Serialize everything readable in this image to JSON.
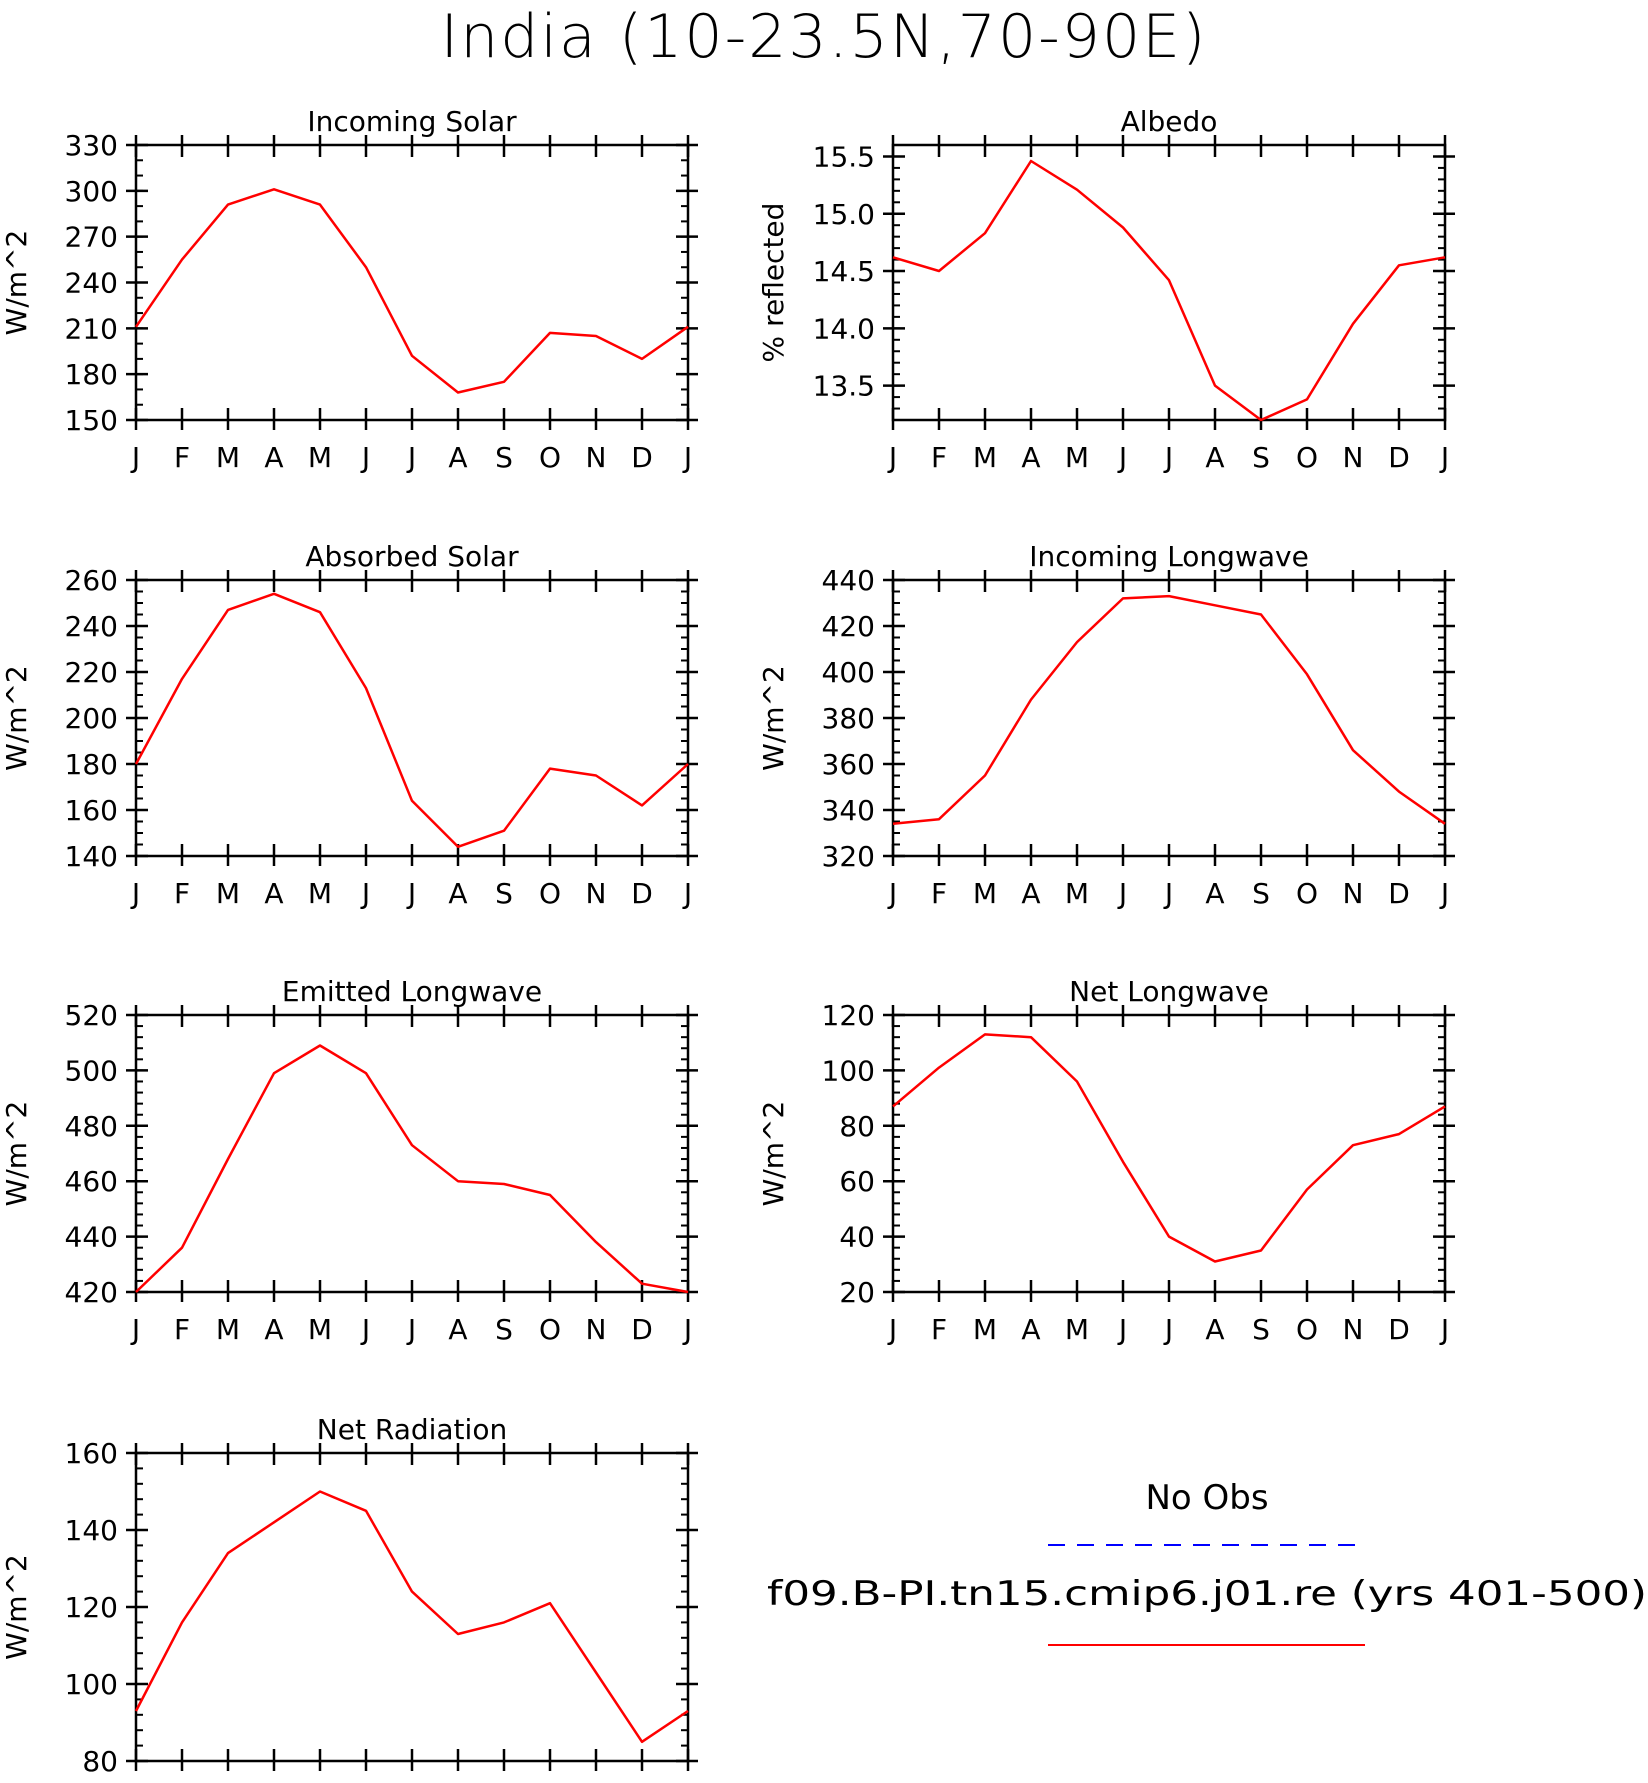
{
  "title": "India (10-23.5N,70-90E)",
  "months": [
    "J",
    "F",
    "M",
    "A",
    "M",
    "J",
    "J",
    "A",
    "S",
    "O",
    "N",
    "D",
    "J"
  ],
  "colors": {
    "model": "#ff0000",
    "obs": "#0000ff",
    "axis": "#000000"
  },
  "chart_data": [
    {
      "type": "line",
      "title": "Incoming Solar",
      "ylabel": "W/m^2",
      "ylim": [
        150,
        330
      ],
      "yticks": [
        150,
        180,
        210,
        240,
        270,
        300,
        330
      ],
      "ydecimals": 0,
      "yminor": 10,
      "categories": [
        "J",
        "F",
        "M",
        "A",
        "M",
        "J",
        "J",
        "A",
        "S",
        "O",
        "N",
        "D",
        "J"
      ],
      "series": [
        {
          "values": [
            211,
            255,
            291,
            301,
            291,
            250,
            192,
            168,
            175,
            207,
            205,
            190,
            211
          ]
        }
      ]
    },
    {
      "type": "line",
      "title": "Albedo",
      "ylabel": "% reflected",
      "ylim": [
        13.2,
        15.6
      ],
      "yticks": [
        13.5,
        14.0,
        14.5,
        15.0,
        15.5
      ],
      "ydecimals": 1,
      "yminor": 0.1,
      "categories": [
        "J",
        "F",
        "M",
        "A",
        "M",
        "J",
        "J",
        "A",
        "S",
        "O",
        "N",
        "D",
        "J"
      ],
      "series": [
        {
          "values": [
            14.62,
            14.5,
            14.83,
            15.46,
            15.21,
            14.88,
            14.42,
            13.5,
            13.2,
            13.38,
            14.04,
            14.55,
            14.62
          ]
        }
      ]
    },
    {
      "type": "line",
      "title": "Absorbed Solar",
      "ylabel": "W/m^2",
      "ylim": [
        140,
        260
      ],
      "yticks": [
        140,
        160,
        180,
        200,
        220,
        240,
        260
      ],
      "ydecimals": 0,
      "yminor": 5,
      "categories": [
        "J",
        "F",
        "M",
        "A",
        "M",
        "J",
        "J",
        "A",
        "S",
        "O",
        "N",
        "D",
        "J"
      ],
      "series": [
        {
          "values": [
            180,
            217,
            247,
            254,
            246,
            213,
            164,
            144,
            151,
            178,
            175,
            162,
            180
          ]
        }
      ]
    },
    {
      "type": "line",
      "title": "Incoming Longwave",
      "ylabel": "W/m^2",
      "ylim": [
        320,
        440
      ],
      "yticks": [
        320,
        340,
        360,
        380,
        400,
        420,
        440
      ],
      "ydecimals": 0,
      "yminor": 5,
      "categories": [
        "J",
        "F",
        "M",
        "A",
        "M",
        "J",
        "J",
        "A",
        "S",
        "O",
        "N",
        "D",
        "J"
      ],
      "series": [
        {
          "values": [
            334,
            336,
            355,
            388,
            413,
            432,
            433,
            429,
            425,
            399,
            366,
            348,
            334
          ]
        }
      ]
    },
    {
      "type": "line",
      "title": "Emitted Longwave",
      "ylabel": "W/m^2",
      "ylim": [
        420,
        520
      ],
      "yticks": [
        420,
        440,
        460,
        480,
        500,
        520
      ],
      "ydecimals": 0,
      "yminor": 4,
      "categories": [
        "J",
        "F",
        "M",
        "A",
        "M",
        "J",
        "J",
        "A",
        "S",
        "O",
        "N",
        "D",
        "J"
      ],
      "series": [
        {
          "values": [
            420,
            436,
            468,
            499,
            509,
            499,
            473,
            460,
            459,
            455,
            438,
            423,
            420
          ]
        }
      ]
    },
    {
      "type": "line",
      "title": "Net Longwave",
      "ylabel": "W/m^2",
      "ylim": [
        20,
        120
      ],
      "yticks": [
        20,
        40,
        60,
        80,
        100,
        120
      ],
      "ydecimals": 0,
      "yminor": 4,
      "categories": [
        "J",
        "F",
        "M",
        "A",
        "M",
        "J",
        "J",
        "A",
        "S",
        "O",
        "N",
        "D",
        "J"
      ],
      "series": [
        {
          "values": [
            87,
            101,
            113,
            112,
            96,
            67,
            40,
            31,
            35,
            57,
            73,
            77,
            87
          ]
        }
      ]
    },
    {
      "type": "line",
      "title": "Net Radiation",
      "ylabel": "W/m^2",
      "ylim": [
        80,
        160
      ],
      "yticks": [
        80,
        100,
        120,
        140,
        160
      ],
      "ydecimals": 0,
      "yminor": 4,
      "categories": [
        "J",
        "F",
        "M",
        "A",
        "M",
        "J",
        "J",
        "A",
        "S",
        "O",
        "N",
        "D",
        "J"
      ],
      "series": [
        {
          "values": [
            93,
            116,
            134,
            142,
            150,
            145,
            124,
            113,
            116,
            121,
            103,
            85,
            93
          ]
        }
      ]
    }
  ],
  "legend": {
    "obs_label": "No Obs",
    "model_label": "f09.B-PI.tn15.cmip6.j01.re (yrs 401-500)"
  }
}
